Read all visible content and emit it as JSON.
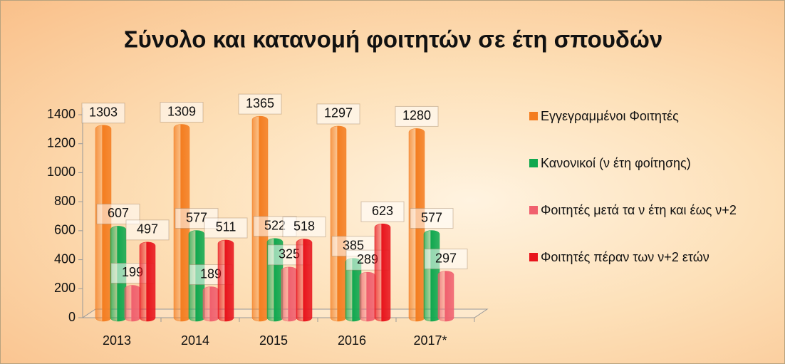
{
  "chart_data": {
    "type": "bar",
    "title": "Σύνολο και κατανομή φοιτητών σε έτη σπουδών",
    "categories": [
      "2013",
      "2014",
      "2015",
      "2016",
      "2017*"
    ],
    "series": [
      {
        "name": "Εγγεγραμμένοι Φοιτητές",
        "color": "#f47d20",
        "values": [
          1303,
          1309,
          1365,
          1297,
          1280
        ]
      },
      {
        "name": "Κανονικοί (ν έτη φοίτησης)",
        "color": "#10a84f",
        "values": [
          607,
          577,
          522,
          385,
          577
        ]
      },
      {
        "name": "Φοιτητές μετά τα ν έτη και έως ν+2",
        "color": "#f0606e",
        "values": [
          199,
          189,
          325,
          289,
          297
        ]
      },
      {
        "name": "Φοιτητές πέραν των ν+2 ετών",
        "color": "#e8141c",
        "values": [
          497,
          511,
          518,
          623,
          null
        ]
      }
    ],
    "ylim": [
      0,
      1400
    ],
    "yticks": [
      0,
      200,
      400,
      600,
      800,
      1000,
      1200,
      1400
    ],
    "legend": "right"
  }
}
